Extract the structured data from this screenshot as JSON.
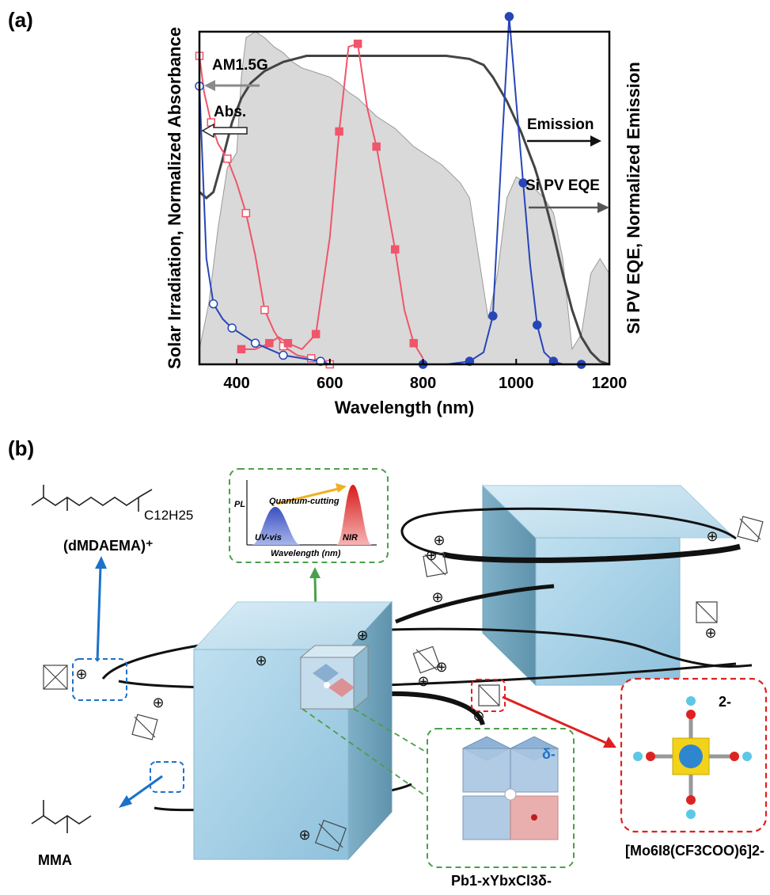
{
  "panel_a_label": "(a)",
  "panel_b_label": "(b)",
  "chart_data": {
    "type": "line",
    "xlabel": "Wavelength (nm)",
    "ylabel_left": "Solar Irradiation, Normalized Absorbance",
    "ylabel_right": "Si PV EQE, Normalized Emission",
    "xlim": [
      320,
      1200
    ],
    "ylim": [
      0,
      1.1
    ],
    "x_ticks": [
      "400",
      "600",
      "800",
      "1000",
      "1200"
    ],
    "grid": false,
    "annotations": {
      "am15g": "AM1.5G",
      "abs": "Abs.",
      "emission": "Emission",
      "eqe": "Si PV EQE"
    },
    "series": [
      {
        "color": "#9a9a9a",
        "x": [
          320,
          340,
          360,
          380,
          400,
          410,
          420,
          440,
          460,
          480,
          500,
          520,
          540,
          560,
          580,
          600,
          620,
          640,
          660,
          680,
          700,
          720,
          740,
          760,
          780,
          800,
          820,
          840,
          860,
          880,
          900,
          920,
          940,
          960,
          980,
          1000,
          1020,
          1040,
          1060,
          1080,
          1100,
          1120,
          1140,
          1160,
          1180,
          1200
        ],
        "y": [
          0.05,
          0.2,
          0.45,
          0.65,
          0.7,
          0.95,
          1.08,
          1.1,
          1.08,
          1.05,
          1.03,
          1.0,
          0.98,
          0.97,
          0.96,
          0.95,
          0.93,
          0.9,
          0.88,
          0.85,
          0.82,
          0.8,
          0.78,
          0.75,
          0.72,
          0.7,
          0.68,
          0.66,
          0.63,
          0.6,
          0.55,
          0.35,
          0.15,
          0.3,
          0.55,
          0.62,
          0.6,
          0.58,
          0.55,
          0.5,
          0.35,
          0.05,
          0.1,
          0.3,
          0.35,
          0.3
        ]
      },
      {
        "color": "#444444",
        "x": [
          320,
          335,
          350,
          370,
          390,
          410,
          430,
          460,
          500,
          550,
          600,
          650,
          700,
          750,
          800,
          850,
          900,
          930,
          950,
          980,
          1010,
          1040,
          1060,
          1080,
          1100,
          1120,
          1140,
          1160,
          1180,
          1200
        ],
        "y": [
          0.57,
          0.55,
          0.57,
          0.68,
          0.8,
          0.88,
          0.93,
          0.97,
          1.0,
          1.02,
          1.02,
          1.02,
          1.02,
          1.02,
          1.02,
          1.02,
          1.01,
          0.99,
          0.95,
          0.87,
          0.77,
          0.65,
          0.55,
          0.43,
          0.3,
          0.18,
          0.09,
          0.04,
          0.01,
          0.0
        ]
      },
      {
        "color": "#f0556b",
        "marker": "open-square",
        "x": [
          320,
          330,
          345,
          360,
          380,
          400,
          420,
          440,
          460,
          480,
          500,
          530,
          560,
          590,
          600
        ],
        "y": [
          1.02,
          0.9,
          0.8,
          0.73,
          0.68,
          0.6,
          0.5,
          0.36,
          0.18,
          0.11,
          0.06,
          0.03,
          0.02,
          0.01,
          0.0
        ]
      },
      {
        "color": "#f0556b",
        "marker": "filled-square",
        "x": [
          410,
          440,
          470,
          490,
          510,
          540,
          570,
          600,
          620,
          640,
          660,
          680,
          700,
          720,
          740,
          760,
          780,
          800
        ],
        "y": [
          0.05,
          0.05,
          0.07,
          0.09,
          0.07,
          0.05,
          0.1,
          0.42,
          0.77,
          1.05,
          1.06,
          0.85,
          0.72,
          0.55,
          0.38,
          0.18,
          0.07,
          0.02
        ]
      },
      {
        "color": "#2646b8",
        "marker": "open-circle",
        "x": [
          320,
          335,
          350,
          370,
          390,
          410,
          440,
          470,
          500,
          540,
          580,
          600
        ],
        "y": [
          0.92,
          0.35,
          0.2,
          0.15,
          0.12,
          0.1,
          0.07,
          0.05,
          0.03,
          0.02,
          0.01,
          0.0
        ]
      },
      {
        "color": "#2646b8",
        "marker": "filled-circle",
        "x": [
          800,
          850,
          900,
          930,
          950,
          970,
          985,
          1000,
          1015,
          1030,
          1045,
          1060,
          1080,
          1100,
          1140,
          1200
        ],
        "y": [
          0.0,
          0.0,
          0.01,
          0.04,
          0.16,
          0.74,
          1.15,
          0.87,
          0.6,
          0.33,
          0.13,
          0.04,
          0.01,
          0.0,
          0.0,
          0.0
        ]
      }
    ]
  },
  "panel_b": {
    "dmdaema": "(dMDAEMA)⁺",
    "mma": "MMA",
    "subst": "C12H25",
    "charge_plus": "⊕",
    "pb_formula": "Pb1-xYbxCl3δ-",
    "mo_formula": "[Mo6I8(CF3COO)6]2-",
    "mo_charge": "2-",
    "delta_minus": "δ-",
    "inset": {
      "title": "Quantum-cutting",
      "ylabel": "PL",
      "xlabel": "Wavelength (nm)",
      "uv": "UV-vis",
      "nir": "NIR"
    }
  }
}
